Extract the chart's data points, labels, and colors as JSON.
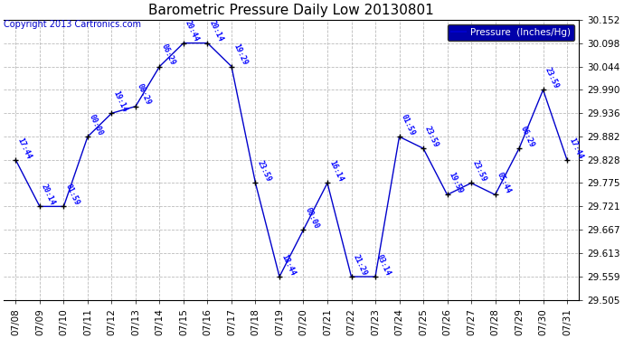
{
  "title": "Barometric Pressure Daily Low 20130801",
  "copyright": "Copyright 2013 Cartronics.com",
  "legend_label": "Pressure  (Inches/Hg)",
  "dates": [
    "07/08",
    "07/09",
    "07/10",
    "07/11",
    "07/12",
    "07/13",
    "07/14",
    "07/15",
    "07/16",
    "07/17",
    "07/18",
    "07/19",
    "07/20",
    "07/21",
    "07/22",
    "07/23",
    "07/24",
    "07/25",
    "07/26",
    "07/27",
    "07/28",
    "07/29",
    "07/30",
    "07/31"
  ],
  "values": [
    29.828,
    29.721,
    29.721,
    29.882,
    29.936,
    29.952,
    30.044,
    30.098,
    30.098,
    30.044,
    29.775,
    29.559,
    29.667,
    29.775,
    29.559,
    29.559,
    29.882,
    29.855,
    29.748,
    29.775,
    29.748,
    29.855,
    29.99,
    29.828
  ],
  "time_labels": [
    "17:44",
    "20:14",
    "01:59",
    "00:00",
    "19:14",
    "08:29",
    "06:29",
    "20:44",
    "20:14",
    "19:29",
    "23:59",
    "18:44",
    "00:00",
    "16:14",
    "21:29",
    "03:14",
    "01:59",
    "23:59",
    "19:59",
    "23:59",
    "05:44",
    "06:29",
    "23:59",
    "17:44"
  ],
  "ylim": [
    29.505,
    30.152
  ],
  "yticks": [
    29.505,
    29.559,
    29.613,
    29.667,
    29.721,
    29.775,
    29.828,
    29.882,
    29.936,
    29.99,
    30.044,
    30.098,
    30.152
  ],
  "line_color": "#0000cc",
  "marker_color": "#000000",
  "grid_color": "#bbbbbb",
  "bg_color": "#ffffff",
  "plot_bg_color": "#ffffff",
  "title_color": "#000000",
  "label_color": "#0000ff",
  "legend_bg": "#0000aa",
  "legend_text_color": "#ffffff",
  "copyright_color": "#0000cc"
}
